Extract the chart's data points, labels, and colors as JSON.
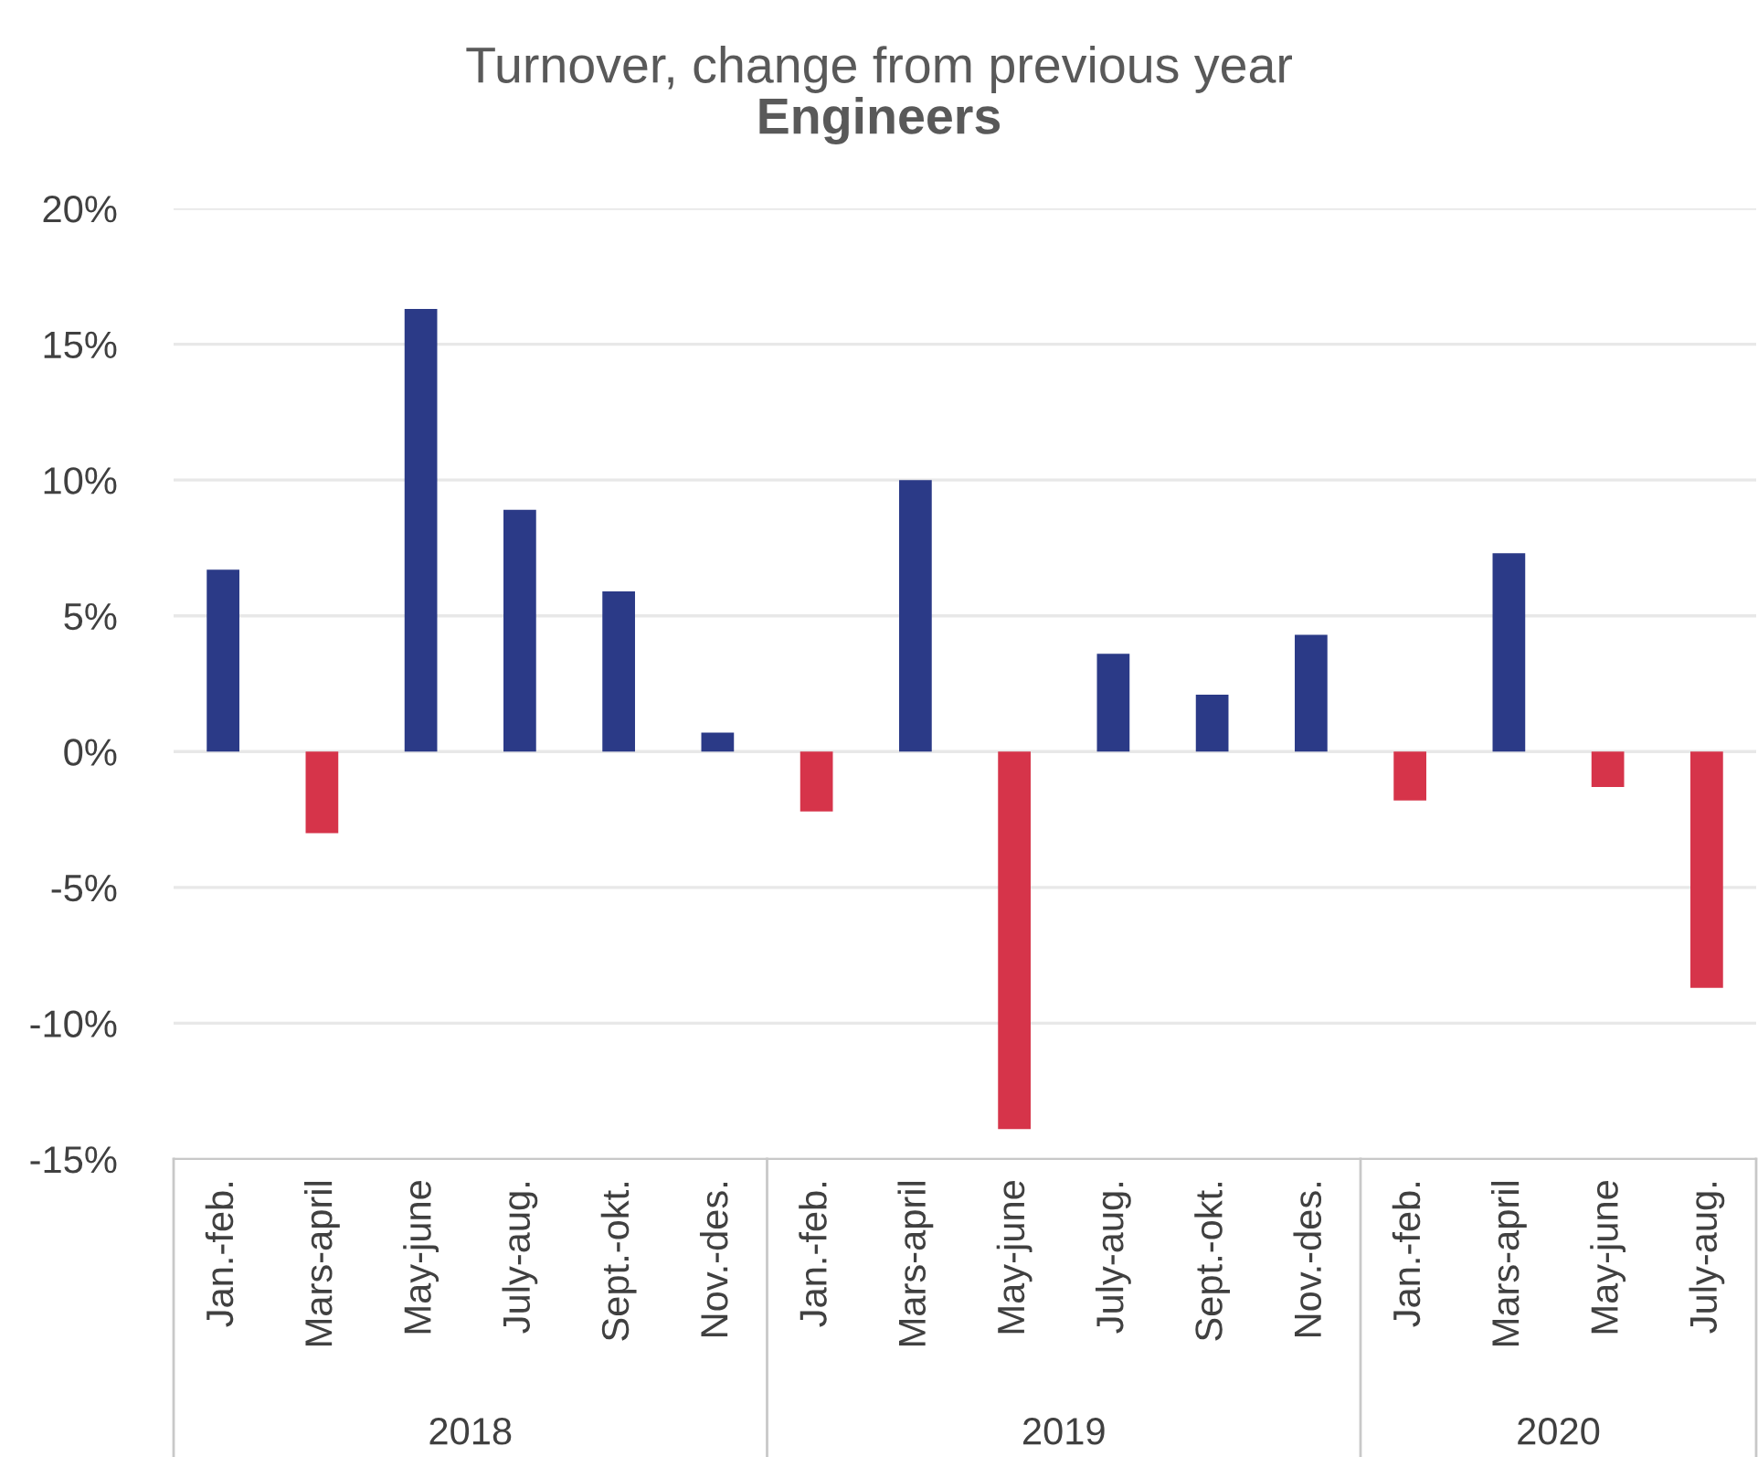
{
  "chart_data": {
    "type": "bar",
    "title": "Turnover, change from previous year",
    "subtitle": "Engineers",
    "categories": [
      "Jan.-feb.",
      "Mars-april",
      "May-june",
      "July-aug.",
      "Sept.-okt.",
      "Nov.-des.",
      "Jan.-feb.",
      "Mars-april",
      "May-june",
      "July-aug.",
      "Sept.-okt.",
      "Nov.-des.",
      "Jan.-feb.",
      "Mars-april",
      "May-june",
      "July-aug."
    ],
    "values": [
      6.7,
      -3.0,
      16.3,
      8.9,
      5.9,
      0.7,
      -2.2,
      10.0,
      -13.9,
      3.6,
      2.1,
      4.3,
      -1.8,
      7.3,
      -1.3,
      -8.7
    ],
    "colors": [
      "#2b3a87",
      "#d6344a",
      "#2b3a87",
      "#2b3a87",
      "#2b3a87",
      "#2b3a87",
      "#d6344a",
      "#2b3a87",
      "#d6344a",
      "#2b3a87",
      "#2b3a87",
      "#2b3a87",
      "#d6344a",
      "#2b3a87",
      "#d6344a",
      "#d6344a"
    ],
    "ylim": [
      -15,
      20
    ],
    "yticks": [
      {
        "value": -15,
        "label": "-15%"
      },
      {
        "value": -10,
        "label": "-10%"
      },
      {
        "value": -5,
        "label": "-5%"
      },
      {
        "value": 0,
        "label": "0%"
      },
      {
        "value": 5,
        "label": "5%"
      },
      {
        "value": 10,
        "label": "10%"
      },
      {
        "value": 15,
        "label": "15%"
      },
      {
        "value": 20,
        "label": "20%"
      }
    ],
    "grid": "y",
    "legend": false,
    "annotations": [
      "2018",
      "2019",
      "2020"
    ]
  }
}
